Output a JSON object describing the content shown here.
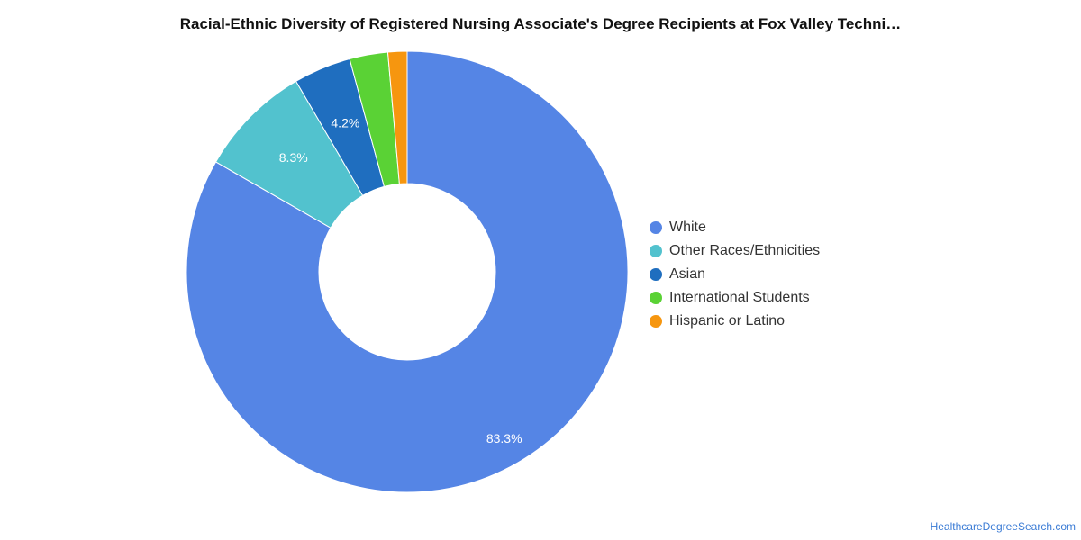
{
  "chart_data": {
    "type": "pie",
    "title": "Racial-Ethnic Diversity of Registered Nursing Associate's Degree Recipients at Fox Valley Techni…",
    "donut": true,
    "legend_position": "right",
    "series": [
      {
        "name": "White",
        "value": 83.3,
        "color": "#5585e5",
        "label": "83.3%"
      },
      {
        "name": "Other Races/Ethnicities",
        "value": 8.3,
        "color": "#52c2ce",
        "label": "8.3%"
      },
      {
        "name": "Asian",
        "value": 4.2,
        "color": "#1f6ebf",
        "label": "4.2%"
      },
      {
        "name": "International Students",
        "value": 2.8,
        "color": "#5ad235",
        "label": ""
      },
      {
        "name": "Hispanic or Latino",
        "value": 1.4,
        "color": "#f6960f",
        "label": ""
      }
    ]
  },
  "footer": {
    "source": "HealthcareDegreeSearch.com"
  }
}
